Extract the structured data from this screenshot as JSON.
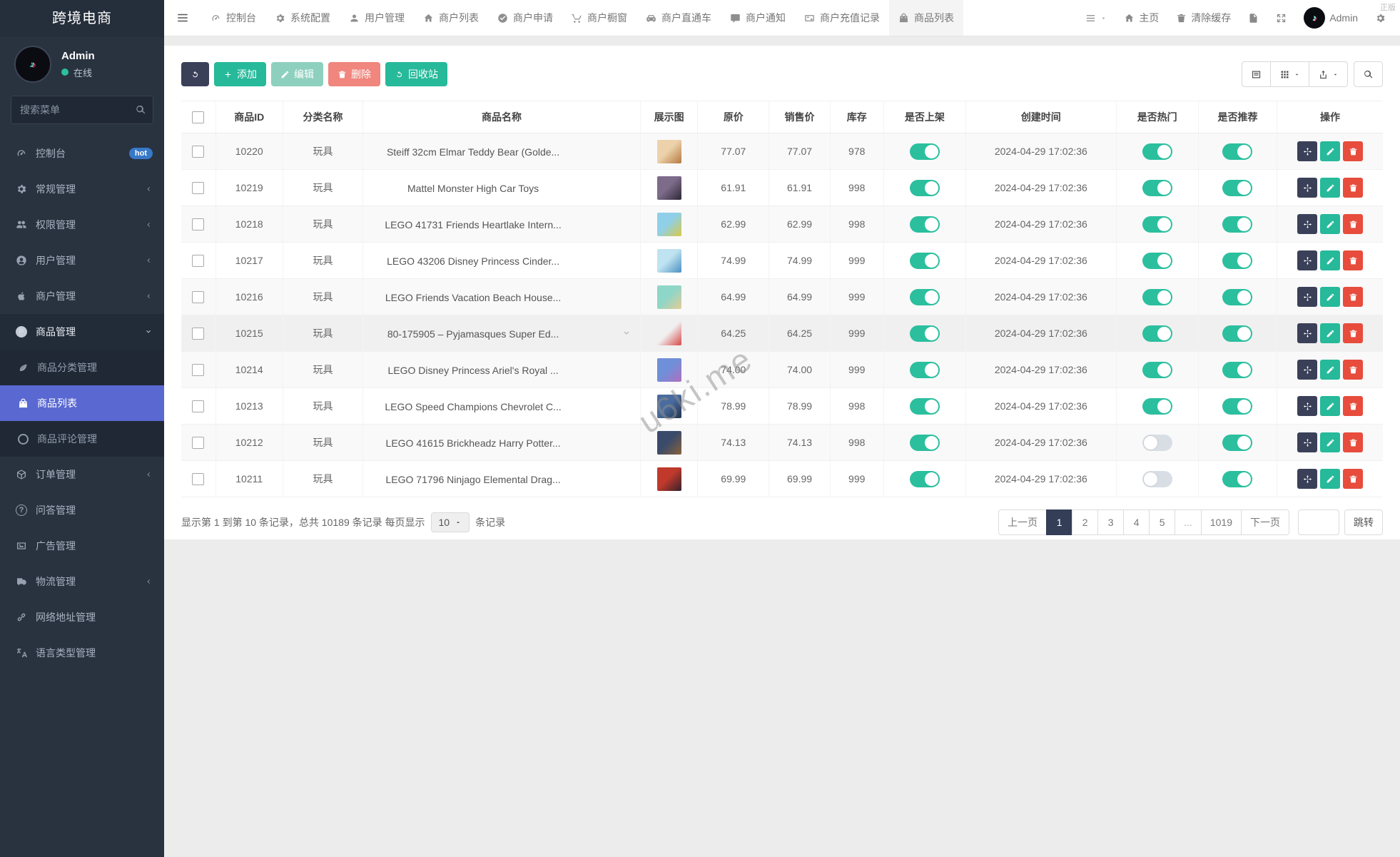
{
  "watermarks": {
    "corner": "正版",
    "diagonal": "u6ki.me"
  },
  "colors": {
    "accent_teal": "#26b99a",
    "accent_indigo": "#5a68d2",
    "danger": "#e74c3c",
    "dark_navy": "#3b4059",
    "toggle_on": "#2bbf9e",
    "badge_blue": "#3779c9",
    "sidebar_bg": "#29323f"
  },
  "sidebar": {
    "brand": "跨境电商",
    "user": {
      "name": "Admin",
      "status": "在线"
    },
    "search_placeholder": "搜索菜单",
    "items": [
      {
        "label": "控制台",
        "icon": "dashboard-icon",
        "badge": "hot"
      },
      {
        "label": "常规管理",
        "icon": "cogs-icon"
      },
      {
        "label": "权限管理",
        "icon": "users-icon"
      },
      {
        "label": "用户管理",
        "icon": "user-circle-icon"
      },
      {
        "label": "商户管理",
        "icon": "apple-icon"
      },
      {
        "label": "商品管理",
        "icon": "product-icon",
        "expanded": true,
        "children": [
          {
            "label": "商品分类管理",
            "icon": "leaf-icon"
          },
          {
            "label": "商品列表",
            "icon": "bag-icon",
            "active": true
          },
          {
            "label": "商品评论管理",
            "icon": "circle-icon"
          }
        ]
      },
      {
        "label": "订单管理",
        "icon": "cube-icon"
      },
      {
        "label": "问答管理",
        "icon": "question-icon"
      },
      {
        "label": "广告管理",
        "icon": "image-icon"
      },
      {
        "label": "物流管理",
        "icon": "truck-icon"
      },
      {
        "label": "网络地址管理",
        "icon": "link-icon"
      },
      {
        "label": "语言类型管理",
        "icon": "language-icon"
      }
    ]
  },
  "topbar": {
    "tabs": [
      {
        "label": "控制台",
        "icon": "dashboard-icon"
      },
      {
        "label": "系统配置",
        "icon": "gear-icon"
      },
      {
        "label": "用户管理",
        "icon": "user-icon"
      },
      {
        "label": "商户列表",
        "icon": "home-icon"
      },
      {
        "label": "商户申请",
        "icon": "check-circle-icon"
      },
      {
        "label": "商户橱窗",
        "icon": "cart-icon"
      },
      {
        "label": "商户直通车",
        "icon": "car-icon"
      },
      {
        "label": "商户通知",
        "icon": "comment-icon"
      },
      {
        "label": "商户充值记录",
        "icon": "card-icon"
      },
      {
        "label": "商品列表",
        "icon": "bag-icon",
        "active": true
      }
    ],
    "right": {
      "home": "主页",
      "clear_cache": "清除缓存",
      "username": "Admin"
    }
  },
  "toolbar": {
    "add": "添加",
    "edit": "编辑",
    "delete": "删除",
    "recycle": "回收站"
  },
  "table": {
    "headers": [
      "商品ID",
      "分类名称",
      "商品名称",
      "展示图",
      "原价",
      "销售价",
      "库存",
      "是否上架",
      "创建时间",
      "是否热门",
      "是否推荐",
      "操作"
    ],
    "rows": [
      {
        "id": "10220",
        "category": "玩具",
        "name": "Steiff 32cm Elmar Teddy Bear (Golde...",
        "price": "77.07",
        "sale_price": "77.07",
        "stock": "978",
        "on_sale": true,
        "created": "2024-04-29 17:02:36",
        "hot": true,
        "recommend": true,
        "thumb_colors": [
          "#ecd2ab",
          "#b5793f"
        ]
      },
      {
        "id": "10219",
        "category": "玩具",
        "name": "Mattel Monster High Car Toys",
        "price": "61.91",
        "sale_price": "61.91",
        "stock": "998",
        "on_sale": true,
        "created": "2024-04-29 17:02:36",
        "hot": true,
        "recommend": true,
        "thumb_colors": [
          "#7d6b8a",
          "#2e2836"
        ]
      },
      {
        "id": "10218",
        "category": "玩具",
        "name": "LEGO 41731 Friends Heartlake Intern...",
        "price": "62.99",
        "sale_price": "62.99",
        "stock": "998",
        "on_sale": true,
        "created": "2024-04-29 17:02:36",
        "hot": true,
        "recommend": true,
        "thumb_colors": [
          "#8fd0e8",
          "#d9c94a"
        ]
      },
      {
        "id": "10217",
        "category": "玩具",
        "name": "LEGO 43206 Disney Princess Cinder...",
        "price": "74.99",
        "sale_price": "74.99",
        "stock": "999",
        "on_sale": true,
        "created": "2024-04-29 17:02:36",
        "hot": true,
        "recommend": true,
        "thumb_colors": [
          "#bfe3f0",
          "#4a90c2"
        ]
      },
      {
        "id": "10216",
        "category": "玩具",
        "name": "LEGO Friends Vacation Beach House...",
        "price": "64.99",
        "sale_price": "64.99",
        "stock": "999",
        "on_sale": true,
        "created": "2024-04-29 17:02:36",
        "hot": true,
        "recommend": true,
        "thumb_colors": [
          "#8ed6c8",
          "#e3cd96"
        ]
      },
      {
        "id": "10215",
        "category": "玩具",
        "name": "80-175905 – Pyjamasques Super Ed...",
        "price": "64.25",
        "sale_price": "64.25",
        "stock": "999",
        "on_sale": true,
        "created": "2024-04-29 17:02:36",
        "hot": true,
        "recommend": true,
        "thumb_colors": [
          "#f0f0f0",
          "#d84848"
        ]
      },
      {
        "id": "10214",
        "category": "玩具",
        "name": "LEGO Disney Princess Ariel's Royal ...",
        "price": "74.00",
        "sale_price": "74.00",
        "stock": "999",
        "on_sale": true,
        "created": "2024-04-29 17:02:36",
        "hot": true,
        "recommend": true,
        "thumb_colors": [
          "#6f8fd8",
          "#b06fc2"
        ]
      },
      {
        "id": "10213",
        "category": "玩具",
        "name": "LEGO Speed Champions Chevrolet C...",
        "price": "78.99",
        "sale_price": "78.99",
        "stock": "998",
        "on_sale": true,
        "created": "2024-04-29 17:02:36",
        "hot": true,
        "recommend": true,
        "thumb_colors": [
          "#4a6b9e",
          "#22344f"
        ]
      },
      {
        "id": "10212",
        "category": "玩具",
        "name": "LEGO 41615 Brickheadz Harry Potter...",
        "price": "74.13",
        "sale_price": "74.13",
        "stock": "998",
        "on_sale": true,
        "created": "2024-04-29 17:02:36",
        "hot": false,
        "recommend": true,
        "thumb_colors": [
          "#3a4a6b",
          "#8a623a"
        ]
      },
      {
        "id": "10211",
        "category": "玩具",
        "name": "LEGO 71796 Ninjago Elemental Drag...",
        "price": "69.99",
        "sale_price": "69.99",
        "stock": "999",
        "on_sale": true,
        "created": "2024-04-29 17:02:36",
        "hot": false,
        "recommend": true,
        "thumb_colors": [
          "#c0392b",
          "#34222e"
        ]
      }
    ]
  },
  "footer": {
    "summary_prefix": "显示第 1 到第 10 条记录，总共 10189 条记录 每页显示",
    "page_size": "10",
    "summary_suffix": "条记录"
  },
  "pagination": {
    "prev": "上一页",
    "pages": [
      "1",
      "2",
      "3",
      "4",
      "5",
      "...",
      "1019"
    ],
    "active": "1",
    "next": "下一页",
    "jump": "跳转"
  }
}
